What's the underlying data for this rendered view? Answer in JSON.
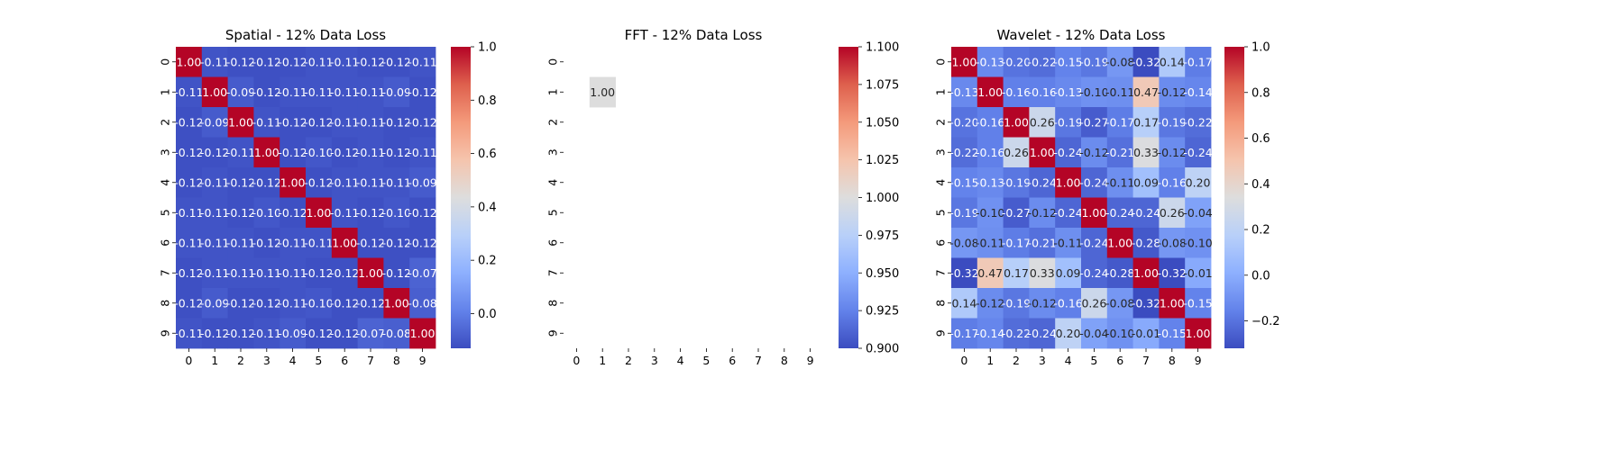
{
  "chart_data": [
    {
      "type": "heatmap",
      "title": "Spatial - 12% Data Loss",
      "x_ticks": [
        "0",
        "1",
        "2",
        "3",
        "4",
        "5",
        "6",
        "7",
        "8",
        "9"
      ],
      "y_ticks": [
        "0",
        "1",
        "2",
        "3",
        "4",
        "5",
        "6",
        "7",
        "8",
        "9"
      ],
      "colormap": "coolwarm",
      "vmin": -0.13,
      "vmax": 1.0,
      "colorbar_ticks": [
        0.0,
        0.2,
        0.4,
        0.6,
        0.8,
        1.0
      ],
      "colorbar_tick_labels": [
        "0.0",
        "0.2",
        "0.4",
        "0.6",
        "0.8",
        "1.0"
      ],
      "values": [
        [
          1.0,
          -0.11,
          -0.12,
          -0.12,
          -0.12,
          -0.11,
          -0.11,
          -0.12,
          -0.12,
          -0.11
        ],
        [
          -0.11,
          1.0,
          -0.09,
          -0.12,
          -0.11,
          -0.11,
          -0.11,
          -0.11,
          -0.09,
          -0.12
        ],
        [
          -0.12,
          -0.09,
          1.0,
          -0.11,
          -0.12,
          -0.12,
          -0.11,
          -0.11,
          -0.12,
          -0.12
        ],
        [
          -0.12,
          -0.12,
          -0.11,
          1.0,
          -0.12,
          -0.1,
          -0.12,
          -0.11,
          -0.12,
          -0.11
        ],
        [
          -0.12,
          -0.11,
          -0.12,
          -0.12,
          1.0,
          -0.12,
          -0.11,
          -0.11,
          -0.11,
          -0.09
        ],
        [
          -0.11,
          -0.11,
          -0.12,
          -0.1,
          -0.12,
          1.0,
          -0.11,
          -0.12,
          -0.1,
          -0.12
        ],
        [
          -0.11,
          -0.11,
          -0.11,
          -0.12,
          -0.11,
          -0.11,
          1.0,
          -0.12,
          -0.12,
          -0.12
        ],
        [
          -0.12,
          -0.11,
          -0.11,
          -0.11,
          -0.11,
          -0.12,
          -0.12,
          1.0,
          -0.12,
          -0.07
        ],
        [
          -0.12,
          -0.09,
          -0.12,
          -0.12,
          -0.11,
          -0.1,
          -0.12,
          -0.12,
          1.0,
          -0.08
        ],
        [
          -0.11,
          -0.12,
          -0.12,
          -0.11,
          -0.09,
          -0.12,
          -0.12,
          -0.07,
          -0.08,
          1.0
        ]
      ]
    },
    {
      "type": "heatmap",
      "title": "FFT - 12% Data Loss",
      "x_ticks": [
        "0",
        "1",
        "2",
        "3",
        "4",
        "5",
        "6",
        "7",
        "8",
        "9"
      ],
      "y_ticks": [
        "0",
        "1",
        "2",
        "3",
        "4",
        "5",
        "6",
        "7",
        "8",
        "9"
      ],
      "colormap": "coolwarm",
      "vmin": 0.9,
      "vmax": 1.1,
      "colorbar_ticks": [
        0.9,
        0.925,
        0.95,
        0.975,
        1.0,
        1.025,
        1.05,
        1.075,
        1.1
      ],
      "colorbar_tick_labels": [
        "0.900",
        "0.925",
        "0.950",
        "0.975",
        "1.000",
        "1.025",
        "1.050",
        "1.075",
        "1.100"
      ],
      "values": [
        [
          null,
          null,
          null,
          null,
          null,
          null,
          null,
          null,
          null,
          null
        ],
        [
          null,
          1.0,
          null,
          null,
          null,
          null,
          null,
          null,
          null,
          null
        ],
        [
          null,
          null,
          null,
          null,
          null,
          null,
          null,
          null,
          null,
          null
        ],
        [
          null,
          null,
          null,
          null,
          null,
          null,
          null,
          null,
          null,
          null
        ],
        [
          null,
          null,
          null,
          null,
          null,
          null,
          null,
          null,
          null,
          null
        ],
        [
          null,
          null,
          null,
          null,
          null,
          null,
          null,
          null,
          null,
          null
        ],
        [
          null,
          null,
          null,
          null,
          null,
          null,
          null,
          null,
          null,
          null
        ],
        [
          null,
          null,
          null,
          null,
          null,
          null,
          null,
          null,
          null,
          null
        ],
        [
          null,
          null,
          null,
          null,
          null,
          null,
          null,
          null,
          null,
          null
        ],
        [
          null,
          null,
          null,
          null,
          null,
          null,
          null,
          null,
          null,
          null
        ]
      ]
    },
    {
      "type": "heatmap",
      "title": "Wavelet - 12% Data Loss",
      "x_ticks": [
        "0",
        "1",
        "2",
        "3",
        "4",
        "5",
        "6",
        "7",
        "8",
        "9"
      ],
      "y_ticks": [
        "0",
        "1",
        "2",
        "3",
        "4",
        "5",
        "6",
        "7",
        "8",
        "9"
      ],
      "colormap": "coolwarm",
      "vmin": -0.32,
      "vmax": 1.0,
      "colorbar_ticks": [
        -0.2,
        0.0,
        0.2,
        0.4,
        0.6,
        0.8,
        1.0
      ],
      "colorbar_tick_labels": [
        "−0.2",
        "0.0",
        "0.2",
        "0.4",
        "0.6",
        "0.8",
        "1.0"
      ],
      "values": [
        [
          1.0,
          -0.13,
          -0.2,
          -0.22,
          -0.15,
          -0.19,
          -0.08,
          -0.32,
          0.14,
          -0.17
        ],
        [
          -0.13,
          1.0,
          -0.16,
          -0.16,
          -0.13,
          -0.1,
          -0.11,
          0.47,
          -0.12,
          -0.14
        ],
        [
          -0.2,
          -0.16,
          1.0,
          0.26,
          -0.19,
          -0.27,
          -0.17,
          0.17,
          -0.19,
          -0.22
        ],
        [
          -0.22,
          -0.16,
          0.26,
          1.0,
          -0.24,
          -0.12,
          -0.21,
          0.33,
          -0.12,
          -0.24
        ],
        [
          -0.15,
          -0.13,
          -0.19,
          -0.24,
          1.0,
          -0.24,
          -0.11,
          0.09,
          -0.16,
          0.2
        ],
        [
          -0.19,
          -0.1,
          -0.27,
          -0.12,
          -0.24,
          1.0,
          -0.24,
          -0.24,
          0.26,
          -0.04
        ],
        [
          -0.08,
          -0.11,
          -0.17,
          -0.21,
          -0.11,
          -0.24,
          1.0,
          -0.28,
          -0.08,
          -0.1
        ],
        [
          -0.32,
          0.47,
          0.17,
          0.33,
          0.09,
          -0.24,
          -0.28,
          1.0,
          -0.32,
          -0.01
        ],
        [
          0.14,
          -0.12,
          -0.19,
          -0.12,
          -0.16,
          0.26,
          -0.08,
          -0.32,
          1.0,
          -0.15
        ],
        [
          -0.17,
          -0.14,
          -0.22,
          -0.24,
          0.2,
          -0.04,
          -0.1,
          -0.01,
          -0.15,
          1.0
        ]
      ]
    }
  ]
}
